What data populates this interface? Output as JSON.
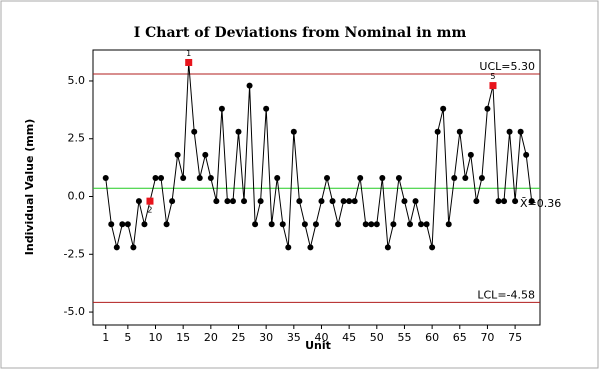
{
  "chart_data": {
    "type": "control",
    "title": "I Chart of Deviations from Nominal in mm",
    "x_label": "Unit",
    "y_label": "Individual Value (mm)",
    "x": [
      1,
      2,
      3,
      4,
      5,
      6,
      7,
      8,
      9,
      10,
      11,
      12,
      13,
      14,
      15,
      16,
      17,
      18,
      19,
      20,
      21,
      22,
      23,
      24,
      25,
      26,
      27,
      28,
      29,
      30,
      31,
      32,
      33,
      34,
      35,
      36,
      37,
      38,
      39,
      40,
      41,
      42,
      43,
      44,
      45,
      46,
      47,
      48,
      49,
      50,
      51,
      52,
      53,
      54,
      55,
      56,
      57,
      58,
      59,
      60,
      61,
      62,
      63,
      64,
      65,
      66,
      67,
      68,
      69,
      70,
      71,
      72,
      73,
      74,
      75,
      76,
      77,
      78
    ],
    "values": [
      0.8,
      -1.2,
      -2.2,
      -1.2,
      -1.2,
      -2.2,
      -0.2,
      -1.2,
      -0.2,
      0.8,
      0.8,
      -1.2,
      -0.2,
      1.8,
      0.8,
      5.8,
      2.8,
      0.8,
      1.8,
      0.8,
      -0.2,
      3.8,
      -0.2,
      -0.2,
      2.8,
      -0.2,
      4.8,
      -1.2,
      -0.2,
      3.8,
      -1.2,
      0.8,
      -1.2,
      -2.2,
      2.8,
      -0.2,
      -1.2,
      -2.2,
      -1.2,
      -0.2,
      0.8,
      -0.2,
      -1.2,
      -0.2,
      -0.2,
      -0.2,
      0.8,
      -1.2,
      -1.2,
      -1.2,
      0.8,
      -2.2,
      -1.2,
      0.8,
      -0.2,
      -1.2,
      -0.2,
      -1.2,
      -1.2,
      -2.2,
      2.8,
      3.8,
      -1.2,
      0.8,
      2.8,
      0.8,
      1.8,
      -0.2,
      0.8,
      3.8,
      4.8,
      -0.2,
      -0.2,
      2.8,
      -0.2,
      2.8,
      1.8,
      -0.2
    ],
    "color": "#000000",
    "flag_color": "#e8141c",
    "flagged": [
      {
        "point": 16,
        "label": "1"
      },
      {
        "point": 9,
        "label": "2"
      },
      {
        "point": 71,
        "label": "5"
      }
    ],
    "limits": [
      {
        "value": 5.3,
        "label": "UCL=5.30",
        "color": "#b01c1c"
      },
      {
        "value": 0.36,
        "label": "X̄=0.36",
        "color": "#22cc22"
      },
      {
        "value": -4.58,
        "label": "LCL=-4.58",
        "color": "#b01c1c"
      }
    ],
    "xlim": [
      -1.3,
      79.5
    ],
    "ylim": [
      -5.56,
      6.34
    ],
    "xticks": [
      1,
      5,
      10,
      15,
      20,
      25,
      30,
      35,
      40,
      45,
      50,
      55,
      60,
      65,
      70,
      75
    ],
    "yticks": [
      {
        "value": -5,
        "label": "-5.0"
      },
      -2.5,
      {
        "value": 0,
        "label": "0.0"
      },
      2.5,
      {
        "value": 5,
        "label": "5.0"
      }
    ]
  }
}
